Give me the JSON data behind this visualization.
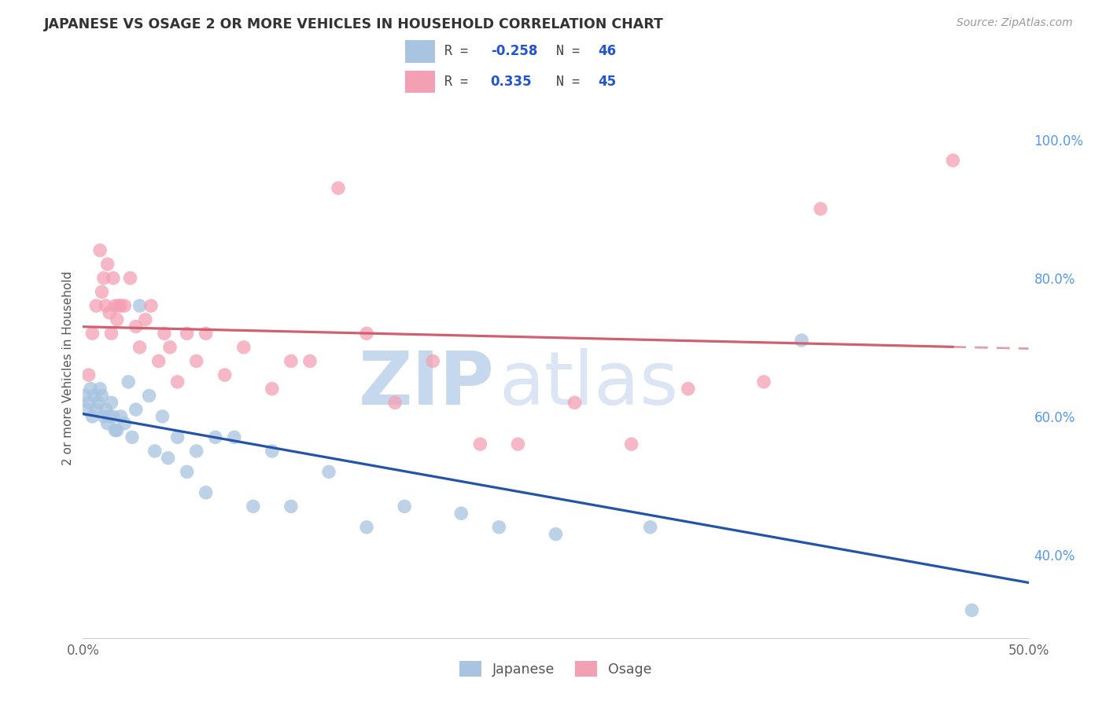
{
  "title": "JAPANESE VS OSAGE 2 OR MORE VEHICLES IN HOUSEHOLD CORRELATION CHART",
  "source": "Source: ZipAtlas.com",
  "ylabel": "2 or more Vehicles in Household",
  "xmin": 0.0,
  "xmax": 0.5,
  "ymin": 0.28,
  "ymax": 1.06,
  "x_ticks": [
    0.0,
    0.1,
    0.2,
    0.3,
    0.4,
    0.5
  ],
  "x_tick_labels": [
    "0.0%",
    "",
    "",
    "",
    "",
    "50.0%"
  ],
  "y_ticks_right": [
    0.4,
    0.6,
    0.8,
    1.0
  ],
  "y_tick_labels_right": [
    "40.0%",
    "60.0%",
    "80.0%",
    "100.0%"
  ],
  "japanese_color": "#a8c4e0",
  "osage_color": "#f4a0b4",
  "japanese_line_color": "#2255aa",
  "osage_line_color": "#d06070",
  "background_color": "#ffffff",
  "grid_color": "#cccccc",
  "japanese_x": [
    0.001,
    0.002,
    0.003,
    0.004,
    0.005,
    0.006,
    0.007,
    0.008,
    0.009,
    0.01,
    0.011,
    0.012,
    0.013,
    0.014,
    0.015,
    0.016,
    0.017,
    0.018,
    0.02,
    0.022,
    0.024,
    0.026,
    0.028,
    0.03,
    0.035,
    0.038,
    0.042,
    0.045,
    0.05,
    0.055,
    0.06,
    0.065,
    0.07,
    0.08,
    0.09,
    0.1,
    0.11,
    0.13,
    0.15,
    0.17,
    0.2,
    0.22,
    0.25,
    0.3,
    0.38,
    0.47
  ],
  "japanese_y": [
    0.63,
    0.61,
    0.62,
    0.64,
    0.6,
    0.63,
    0.61,
    0.62,
    0.64,
    0.63,
    0.6,
    0.61,
    0.59,
    0.6,
    0.62,
    0.6,
    0.58,
    0.58,
    0.6,
    0.59,
    0.65,
    0.57,
    0.61,
    0.76,
    0.63,
    0.55,
    0.6,
    0.54,
    0.57,
    0.52,
    0.55,
    0.49,
    0.57,
    0.57,
    0.47,
    0.55,
    0.47,
    0.52,
    0.44,
    0.47,
    0.46,
    0.44,
    0.43,
    0.44,
    0.71,
    0.32
  ],
  "osage_x": [
    0.003,
    0.005,
    0.007,
    0.009,
    0.01,
    0.011,
    0.012,
    0.013,
    0.014,
    0.015,
    0.016,
    0.017,
    0.018,
    0.019,
    0.02,
    0.022,
    0.025,
    0.028,
    0.03,
    0.033,
    0.036,
    0.04,
    0.043,
    0.046,
    0.05,
    0.055,
    0.06,
    0.065,
    0.075,
    0.085,
    0.1,
    0.11,
    0.12,
    0.135,
    0.15,
    0.165,
    0.185,
    0.21,
    0.23,
    0.26,
    0.29,
    0.32,
    0.36,
    0.39,
    0.46
  ],
  "osage_y": [
    0.66,
    0.72,
    0.76,
    0.84,
    0.78,
    0.8,
    0.76,
    0.82,
    0.75,
    0.72,
    0.8,
    0.76,
    0.74,
    0.76,
    0.76,
    0.76,
    0.8,
    0.73,
    0.7,
    0.74,
    0.76,
    0.68,
    0.72,
    0.7,
    0.65,
    0.72,
    0.68,
    0.72,
    0.66,
    0.7,
    0.64,
    0.68,
    0.68,
    0.93,
    0.72,
    0.62,
    0.68,
    0.56,
    0.56,
    0.62,
    0.56,
    0.64,
    0.65,
    0.9,
    0.97
  ],
  "legend_r_japanese": "-0.258",
  "legend_n_japanese": "46",
  "legend_r_osage": "0.335",
  "legend_n_osage": "45"
}
